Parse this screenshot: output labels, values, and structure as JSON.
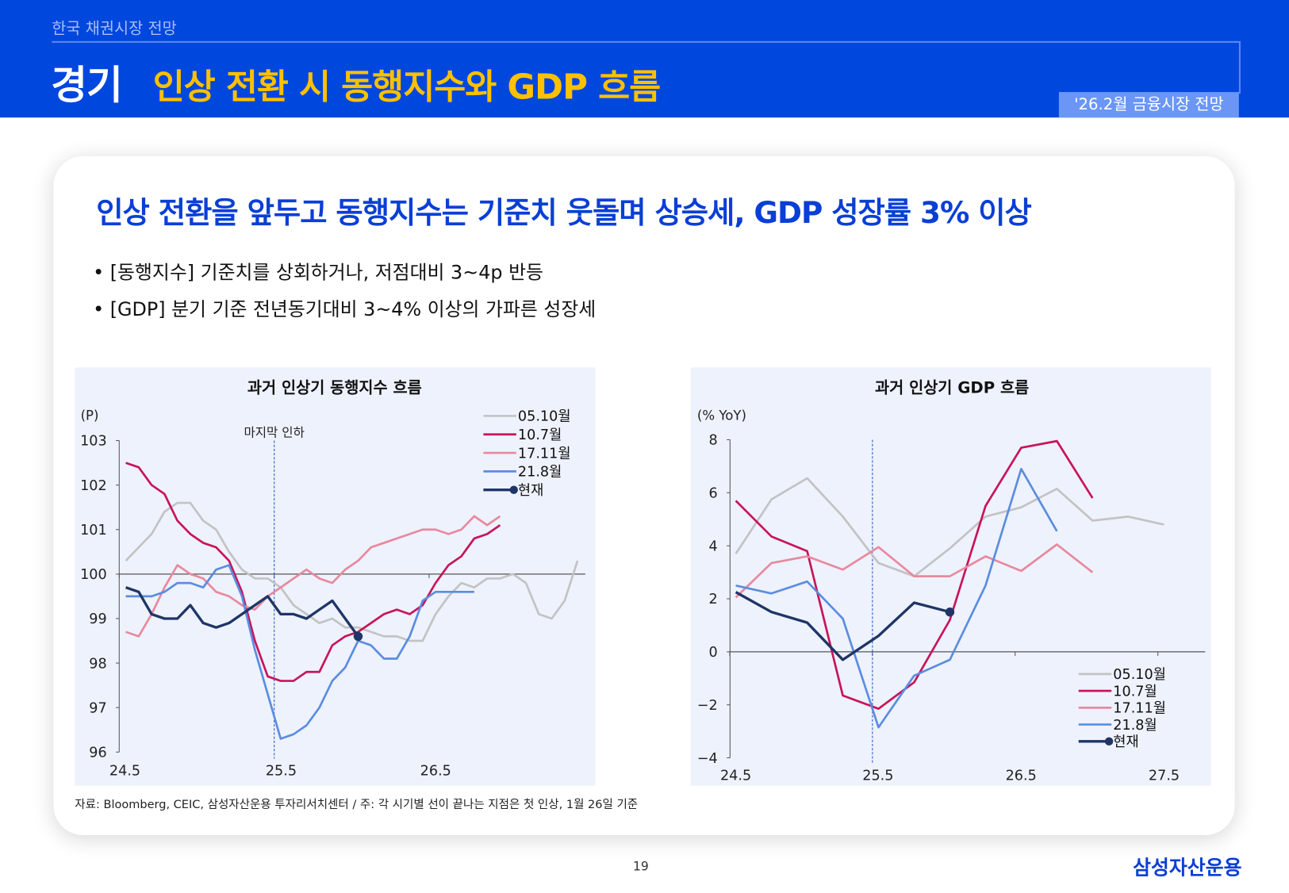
{
  "header": {
    "breadcrumb": "한국 채권시장 전망",
    "section": "경기",
    "title": "인상 전환 시 동행지수와 GDP 흐름",
    "badge": "'26.2월 금융시장 전망"
  },
  "main": {
    "headline": "인상 전환을 앞두고 동행지수는 기준치 웃돌며 상승세, GDP 성장률 3% 이상",
    "bullets": [
      "• [동행지수] 기준치를 상회하거나, 저점대비 3~4p 반등",
      "• [GDP] 분기 기준 전년동기대비 3~4% 이상의 가파른 성장세"
    ],
    "source": "자료: Bloomberg, CEIC, 삼성자산운용 투자리서치센터 / 주: 각 시기별 선이 끝나는 지점은 첫 인상, 1월 26일 기준"
  },
  "footer": {
    "page": "19",
    "logo": "삼성자산운용"
  },
  "chart_data": [
    {
      "type": "line",
      "title": "과거 인상기 동행지수 흐름",
      "ylabel": "(P)",
      "ylim": [
        96,
        103
      ],
      "yticks": [
        96,
        97,
        98,
        99,
        100,
        101,
        102,
        103
      ],
      "xticks": [
        "24.5",
        "25.5",
        "26.5"
      ],
      "x_unit": "monthly",
      "annotation": "마지막 인하",
      "legend": "top-right",
      "reference_line": 100,
      "series": [
        {
          "name": "05.10월",
          "color": "#c3c3c3",
          "values": [
            100.3,
            100.6,
            100.9,
            101.4,
            101.6,
            101.6,
            101.2,
            101.0,
            100.5,
            100.1,
            99.9,
            99.9,
            99.7,
            99.3,
            99.1,
            98.9,
            99.0,
            98.8,
            98.8,
            98.7,
            98.6,
            98.6,
            98.5,
            98.5,
            99.1,
            99.5,
            99.8,
            99.7,
            99.9,
            99.9,
            100.0,
            99.8,
            99.1,
            99.0,
            99.4,
            100.3
          ]
        },
        {
          "name": "10.7월",
          "color": "#c8145a",
          "values": [
            102.5,
            102.4,
            102.0,
            101.8,
            101.2,
            100.9,
            100.7,
            100.6,
            100.3,
            99.6,
            98.5,
            97.7,
            97.6,
            97.6,
            97.8,
            97.8,
            98.4,
            98.6,
            98.7,
            98.9,
            99.1,
            99.2,
            99.1,
            99.3,
            99.8,
            100.2,
            100.4,
            100.8,
            100.9,
            101.1
          ]
        },
        {
          "name": "17.11월",
          "color": "#e8899e",
          "values": [
            98.7,
            98.6,
            99.1,
            99.7,
            100.2,
            100.0,
            99.9,
            99.6,
            99.5,
            99.3,
            99.2,
            99.5,
            99.7,
            99.9,
            100.1,
            99.9,
            99.8,
            100.1,
            100.3,
            100.6,
            100.7,
            100.8,
            100.9,
            101.0,
            101.0,
            100.9,
            101.0,
            101.3,
            101.1,
            101.3
          ]
        },
        {
          "name": "21.8월",
          "color": "#5b8de0",
          "values": [
            99.5,
            99.5,
            99.5,
            99.6,
            99.8,
            99.8,
            99.7,
            100.1,
            100.2,
            99.5,
            98.3,
            97.3,
            96.3,
            96.4,
            96.6,
            97.0,
            97.6,
            97.9,
            98.5,
            98.4,
            98.1,
            98.1,
            98.6,
            99.4,
            99.6,
            99.6,
            99.6,
            99.6
          ]
        },
        {
          "name": "현재",
          "color": "#1f3566",
          "marker_last": true,
          "values": [
            99.7,
            99.6,
            99.1,
            99.0,
            99.0,
            99.3,
            98.9,
            98.8,
            98.9,
            99.1,
            99.3,
            99.5,
            99.1,
            99.1,
            99.0,
            99.2,
            99.4,
            99.0,
            98.6
          ]
        }
      ]
    },
    {
      "type": "line",
      "title": "과거 인상기 GDP 흐름",
      "ylabel": "(% YoY)",
      "ylim": [
        -4,
        8
      ],
      "yticks": [
        -4,
        -2,
        0,
        2,
        4,
        6,
        8
      ],
      "xticks": [
        "24.5",
        "25.5",
        "26.5",
        "27.5"
      ],
      "x_unit": "quarterly",
      "legend": "bottom-right",
      "reference_line": 0,
      "series": [
        {
          "name": "05.10월",
          "color": "#c3c3c3",
          "values": [
            3.7,
            5.75,
            6.55,
            5.1,
            3.35,
            2.85,
            3.9,
            5.1,
            5.45,
            6.15,
            4.95,
            5.1,
            4.8
          ]
        },
        {
          "name": "10.7월",
          "color": "#c8145a",
          "values": [
            5.7,
            4.35,
            3.8,
            -1.65,
            -2.15,
            -1.15,
            1.2,
            5.5,
            7.7,
            7.95,
            5.8
          ]
        },
        {
          "name": "17.11월",
          "color": "#e8899e",
          "values": [
            2.05,
            3.35,
            3.6,
            3.1,
            3.95,
            2.85,
            2.85,
            3.6,
            3.05,
            4.05,
            3.0
          ]
        },
        {
          "name": "21.8월",
          "color": "#5b8de0",
          "values": [
            2.5,
            2.2,
            2.65,
            1.25,
            -2.85,
            -0.9,
            -0.3,
            2.5,
            6.9,
            4.55
          ]
        },
        {
          "name": "현재",
          "color": "#1f3566",
          "marker_last": true,
          "values": [
            2.25,
            1.5,
            1.1,
            -0.3,
            0.6,
            1.85,
            1.5
          ]
        }
      ]
    }
  ]
}
